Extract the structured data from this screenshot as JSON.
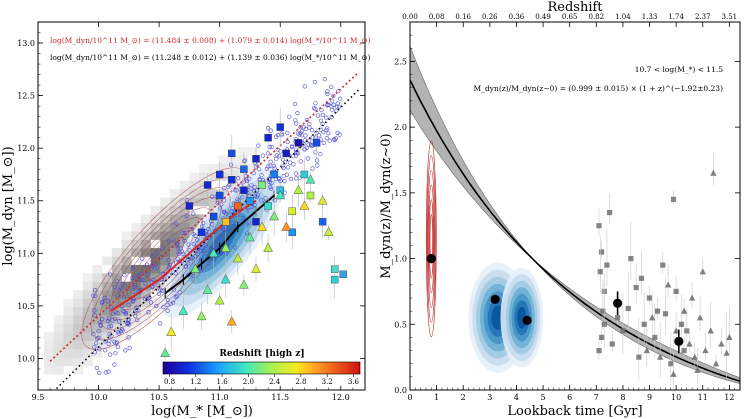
{
  "chart_data": [
    {
      "type": "scatter",
      "panel": "left",
      "title": "",
      "xlabel": "log(M_* [M_⊙])",
      "ylabel": "log(M_dyn [M_⊙])",
      "xlim": [
        9.5,
        12.2
      ],
      "ylim": [
        9.7,
        13.2
      ],
      "xticks": [
        "9.5",
        "10.0",
        "10.5",
        "11.0",
        "11.5",
        "12.0"
      ],
      "yticks": [
        "10.0",
        "10.5",
        "11.0",
        "11.5",
        "12.0",
        "12.5",
        "13.0"
      ],
      "annotations": [
        {
          "text": "log(M_dyn/10^11 M_⊙) = (11.484 ± 0.008) + (1.079 ± 0.014) log(M_*/10^11 M_⊙)",
          "color": "#d62728"
        },
        {
          "text": "log(M_dyn/10^11 M_⊙) = (11.248 ± 0.012) + (1.139 ± 0.036) log(M_*/10^11 M_⊙)",
          "color": "#000000"
        }
      ],
      "fit_red": {
        "intercept": 11.484,
        "slope": 1.079,
        "color": "#d62728"
      },
      "fit_black": {
        "intercept": 11.248,
        "slope": 1.139,
        "color": "#000000"
      },
      "colorbar": {
        "label": "Redshift [high z]",
        "ticks": [
          "0.8",
          "1.2",
          "1.6",
          "2.0",
          "2.4",
          "2.8",
          "3.2",
          "3.6"
        ],
        "range": [
          0.7,
          3.7
        ]
      },
      "binned_median_black": {
        "x": [
          10.55,
          10.7,
          10.85,
          11.0,
          11.15,
          11.3,
          11.45
        ],
        "y": [
          10.62,
          10.75,
          10.9,
          11.05,
          11.25,
          11.4,
          11.55
        ]
      },
      "binned_median_red": {
        "x": [
          10.1,
          10.3,
          10.5,
          10.7,
          10.9,
          11.1,
          11.3
        ],
        "y": [
          10.45,
          10.6,
          10.75,
          10.95,
          11.15,
          11.35,
          11.5
        ]
      },
      "highz_points": [
        {
          "x": 10.9,
          "y": 11.65,
          "z": 1.0,
          "m": "s"
        },
        {
          "x": 11.0,
          "y": 11.55,
          "z": 1.2,
          "m": "s"
        },
        {
          "x": 11.1,
          "y": 11.7,
          "z": 1.1,
          "m": "s"
        },
        {
          "x": 11.2,
          "y": 11.8,
          "z": 1.3,
          "m": "s"
        },
        {
          "x": 11.25,
          "y": 11.5,
          "z": 1.5,
          "m": "s"
        },
        {
          "x": 11.3,
          "y": 11.9,
          "z": 1.0,
          "m": "s"
        },
        {
          "x": 11.35,
          "y": 11.65,
          "z": 2.2,
          "m": "s"
        },
        {
          "x": 11.4,
          "y": 11.45,
          "z": 1.9,
          "m": "s"
        },
        {
          "x": 11.45,
          "y": 11.75,
          "z": 1.4,
          "m": "s"
        },
        {
          "x": 11.5,
          "y": 11.6,
          "z": 1.7,
          "m": "s"
        },
        {
          "x": 11.55,
          "y": 11.95,
          "z": 0.9,
          "m": "s"
        },
        {
          "x": 11.6,
          "y": 11.4,
          "z": 2.6,
          "m": "s"
        },
        {
          "x": 11.65,
          "y": 12.05,
          "z": 0.8,
          "m": "s"
        },
        {
          "x": 11.7,
          "y": 11.75,
          "z": 1.8,
          "m": "s"
        },
        {
          "x": 11.75,
          "y": 11.55,
          "z": 2.4,
          "m": "s"
        },
        {
          "x": 11.8,
          "y": 12.05,
          "z": 1.2,
          "m": "s"
        },
        {
          "x": 11.85,
          "y": 11.3,
          "z": 1.3,
          "m": "s"
        },
        {
          "x": 11.95,
          "y": 10.85,
          "z": 1.9,
          "m": "s"
        },
        {
          "x": 10.85,
          "y": 11.2,
          "z": 1.1,
          "m": "s"
        },
        {
          "x": 10.95,
          "y": 11.35,
          "z": 1.2,
          "m": "s"
        },
        {
          "x": 11.05,
          "y": 11.3,
          "z": 2.9,
          "m": "s"
        },
        {
          "x": 11.15,
          "y": 11.45,
          "z": 3.3,
          "m": "s"
        },
        {
          "x": 11.2,
          "y": 11.6,
          "z": 1.0,
          "m": "s"
        },
        {
          "x": 11.3,
          "y": 11.3,
          "z": 1.0,
          "m": "s"
        },
        {
          "x": 11.0,
          "y": 11.75,
          "z": 1.1,
          "m": "s"
        },
        {
          "x": 11.1,
          "y": 11.95,
          "z": 1.2,
          "m": "s"
        },
        {
          "x": 11.4,
          "y": 12.1,
          "z": 1.0,
          "m": "s"
        },
        {
          "x": 11.5,
          "y": 12.2,
          "z": 1.1,
          "m": "s"
        },
        {
          "x": 11.6,
          "y": 11.2,
          "z": 1.5,
          "m": "s"
        },
        {
          "x": 10.75,
          "y": 11.45,
          "z": 1.0,
          "m": "s"
        },
        {
          "x": 10.8,
          "y": 10.85,
          "z": 2.2,
          "m": "t"
        },
        {
          "x": 10.95,
          "y": 11.0,
          "z": 2.0,
          "m": "t"
        },
        {
          "x": 11.05,
          "y": 11.05,
          "z": 2.3,
          "m": "t"
        },
        {
          "x": 11.15,
          "y": 10.95,
          "z": 2.5,
          "m": "t"
        },
        {
          "x": 11.25,
          "y": 11.15,
          "z": 2.1,
          "m": "t"
        },
        {
          "x": 11.35,
          "y": 11.25,
          "z": 2.8,
          "m": "t"
        },
        {
          "x": 11.45,
          "y": 11.35,
          "z": 2.2,
          "m": "t"
        },
        {
          "x": 11.55,
          "y": 11.25,
          "z": 3.1,
          "m": "t"
        },
        {
          "x": 11.65,
          "y": 11.6,
          "z": 2.4,
          "m": "t"
        },
        {
          "x": 11.75,
          "y": 11.7,
          "z": 2.0,
          "m": "t"
        },
        {
          "x": 11.85,
          "y": 11.5,
          "z": 2.6,
          "m": "t"
        },
        {
          "x": 11.9,
          "y": 11.2,
          "z": 2.5,
          "m": "t"
        },
        {
          "x": 10.7,
          "y": 10.45,
          "z": 2.0,
          "m": "t"
        },
        {
          "x": 10.85,
          "y": 10.4,
          "z": 2.3,
          "m": "t"
        },
        {
          "x": 11.0,
          "y": 10.55,
          "z": 2.4,
          "m": "t"
        },
        {
          "x": 11.1,
          "y": 10.35,
          "z": 3.0,
          "m": "t"
        },
        {
          "x": 11.2,
          "y": 10.7,
          "z": 2.2,
          "m": "t"
        },
        {
          "x": 11.3,
          "y": 10.85,
          "z": 2.6,
          "m": "t"
        },
        {
          "x": 10.9,
          "y": 10.65,
          "z": 2.1,
          "m": "t"
        },
        {
          "x": 10.6,
          "y": 10.25,
          "z": 2.7,
          "m": "t"
        },
        {
          "x": 10.55,
          "y": 10.05,
          "z": 2.1,
          "m": "t"
        },
        {
          "x": 11.05,
          "y": 10.75,
          "z": 1.9,
          "m": "t"
        },
        {
          "x": 11.4,
          "y": 11.05,
          "z": 2.4,
          "m": "t"
        },
        {
          "x": 11.5,
          "y": 11.55,
          "z": 2.0,
          "m": "t"
        },
        {
          "x": 11.7,
          "y": 11.45,
          "z": 2.8,
          "m": "t"
        },
        {
          "x": 11.95,
          "y": 10.75,
          "z": 1.8,
          "m": "s"
        }
      ]
    },
    {
      "type": "scatter",
      "panel": "right",
      "title": "",
      "xlabel": "Lookback time [Gyr]",
      "ylabel": "M_dyn(z)/M_dyn(z∼0)",
      "top_xlabel": "Redshift",
      "xlim": [
        0,
        12.4
      ],
      "ylim": [
        0,
        2.8
      ],
      "xticks": [
        "0",
        "1",
        "2",
        "3",
        "4",
        "5",
        "6",
        "7",
        "8",
        "9",
        "10",
        "11",
        "12"
      ],
      "yticks": [
        "0.0",
        "0.5",
        "1.0",
        "1.5",
        "2.0",
        "2.5"
      ],
      "top_ticks": [
        "0.00",
        "0.08",
        "0.16",
        "0.26",
        "0.36",
        "0.49",
        "0.65",
        "0.82",
        "1.04",
        "1.33",
        "1.74",
        "2.37",
        "3.51"
      ],
      "annotations": [
        {
          "text": "10.7 < log(M_*) < 11.5",
          "color": "#000000"
        },
        {
          "text": "M_dyn(z)/M_dyn(z∼0) = (0.999 ± 0.015) × (1 + z)^(−1.92±0.23)",
          "color": "#000000"
        }
      ],
      "model": {
        "a": 0.999,
        "b": -1.92
      },
      "binned_points": [
        {
          "x": 0.8,
          "y": 1.0
        },
        {
          "x": 3.2,
          "y": 0.69
        },
        {
          "x": 4.4,
          "y": 0.53
        },
        {
          "x": 7.8,
          "y": 0.66
        },
        {
          "x": 10.1,
          "y": 0.37
        }
      ],
      "highz_points": [
        {
          "x": 7.1,
          "y": 1.25,
          "m": "s"
        },
        {
          "x": 7.2,
          "y": 1.05,
          "m": "s"
        },
        {
          "x": 7.15,
          "y": 0.9,
          "m": "s"
        },
        {
          "x": 7.3,
          "y": 0.75,
          "m": "s"
        },
        {
          "x": 7.25,
          "y": 0.6,
          "m": "s"
        },
        {
          "x": 7.3,
          "y": 0.5,
          "m": "s"
        },
        {
          "x": 7.2,
          "y": 0.4,
          "m": "s"
        },
        {
          "x": 7.1,
          "y": 0.3,
          "m": "s"
        },
        {
          "x": 7.4,
          "y": 0.95,
          "m": "s"
        },
        {
          "x": 7.6,
          "y": 0.35,
          "m": "s"
        },
        {
          "x": 7.8,
          "y": 0.55,
          "m": "s"
        },
        {
          "x": 8.0,
          "y": 0.45,
          "m": "s"
        },
        {
          "x": 8.2,
          "y": 0.62,
          "m": "s"
        },
        {
          "x": 8.3,
          "y": 1.0,
          "m": "s"
        },
        {
          "x": 8.5,
          "y": 0.78,
          "m": "s"
        },
        {
          "x": 8.7,
          "y": 0.85,
          "m": "s"
        },
        {
          "x": 8.8,
          "y": 0.5,
          "m": "s"
        },
        {
          "x": 9.0,
          "y": 0.7,
          "m": "s"
        },
        {
          "x": 9.2,
          "y": 0.4,
          "m": "s"
        },
        {
          "x": 9.3,
          "y": 0.6,
          "m": "s"
        },
        {
          "x": 9.5,
          "y": 0.95,
          "m": "s"
        },
        {
          "x": 9.6,
          "y": 0.58,
          "m": "s"
        },
        {
          "x": 9.8,
          "y": 0.2,
          "m": "s"
        },
        {
          "x": 9.9,
          "y": 1.45,
          "m": "s"
        },
        {
          "x": 10.0,
          "y": 0.75,
          "m": "s"
        },
        {
          "x": 10.2,
          "y": 0.5,
          "m": "s"
        },
        {
          "x": 10.3,
          "y": 0.3,
          "m": "s"
        },
        {
          "x": 7.5,
          "y": 1.35,
          "m": "s"
        },
        {
          "x": 10.4,
          "y": 0.45,
          "m": "s"
        },
        {
          "x": 8.6,
          "y": 0.25,
          "m": "s"
        },
        {
          "x": 8.9,
          "y": 0.3,
          "m": "t"
        },
        {
          "x": 9.1,
          "y": 0.55,
          "m": "t"
        },
        {
          "x": 9.4,
          "y": 0.25,
          "m": "t"
        },
        {
          "x": 9.7,
          "y": 0.8,
          "m": "t"
        },
        {
          "x": 10.0,
          "y": 0.45,
          "m": "t"
        },
        {
          "x": 10.3,
          "y": 0.6,
          "m": "t"
        },
        {
          "x": 10.5,
          "y": 0.35,
          "m": "t"
        },
        {
          "x": 10.7,
          "y": 0.25,
          "m": "t"
        },
        {
          "x": 10.9,
          "y": 0.55,
          "m": "t"
        },
        {
          "x": 11.1,
          "y": 0.3,
          "m": "t"
        },
        {
          "x": 11.3,
          "y": 0.45,
          "m": "t"
        },
        {
          "x": 11.5,
          "y": 0.2,
          "m": "t"
        },
        {
          "x": 11.7,
          "y": 0.35,
          "m": "t"
        },
        {
          "x": 11.9,
          "y": 0.28,
          "m": "t"
        },
        {
          "x": 11.4,
          "y": 1.65,
          "m": "t"
        },
        {
          "x": 10.8,
          "y": 0.15,
          "m": "t"
        },
        {
          "x": 12.0,
          "y": 0.4,
          "m": "t"
        },
        {
          "x": 9.9,
          "y": 0.12,
          "m": "t"
        },
        {
          "x": 10.6,
          "y": 0.7,
          "m": "t"
        },
        {
          "x": 11.0,
          "y": 0.9,
          "m": "t"
        }
      ]
    }
  ]
}
